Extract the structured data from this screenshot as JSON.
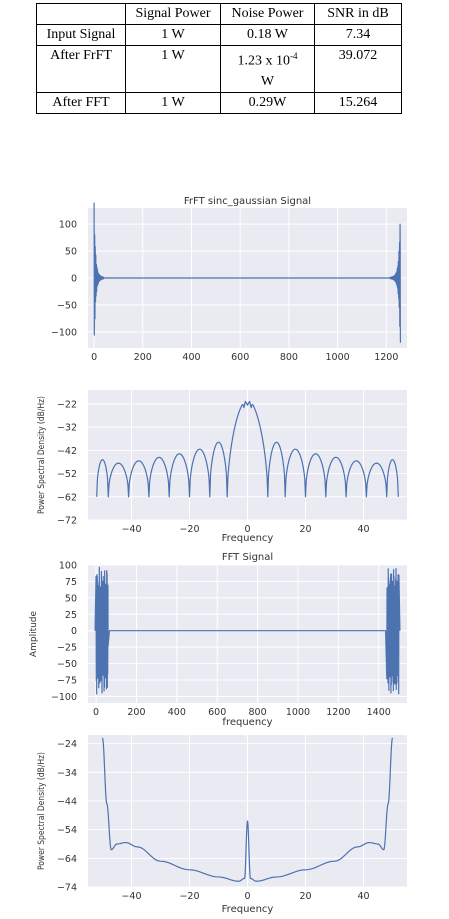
{
  "table": {
    "headers": [
      "",
      "Signal Power",
      "Noise Power",
      "SNR in dB"
    ],
    "rows": [
      {
        "label": "Input Signal",
        "signal_power": "1 W",
        "noise_power": "0.18 W",
        "snr_db": "7.34"
      },
      {
        "label": "After FrFT",
        "signal_power": "1 W",
        "noise_power_base": "1.23 x 10",
        "noise_power_exp": "-4",
        "noise_power_unit": "W",
        "snr_db": "39.072"
      },
      {
        "label": "After FFT",
        "signal_power": "1 W",
        "noise_power": "0.29W",
        "snr_db": "15.264"
      }
    ]
  },
  "colors": {
    "line": "#4c72b0",
    "plot_bg": "#eaeaf2",
    "grid": "#ffffff",
    "text": "#333333"
  },
  "chart_data": [
    {
      "type": "line",
      "title": "FrFT sinc_gaussian Signal",
      "xlabel": "",
      "ylabel": "",
      "xlim": [
        -25,
        1285
      ],
      "ylim": [
        -130,
        130
      ],
      "xticks": [
        0,
        200,
        400,
        600,
        800,
        1000,
        1200
      ],
      "yticks": [
        100,
        50,
        0,
        -50,
        -100
      ],
      "series": [
        {
          "description_points": {
            "burst_left_x": [
              0,
              40
            ],
            "burst_right_x": [
              1215,
              1258
            ],
            "peak_amplitude": 118
          }
        }
      ]
    },
    {
      "type": "line",
      "title": "",
      "xlabel": "Frequency",
      "ylabel": "Power Spectral Density (dB/Hz)",
      "xlim": [
        -55,
        55
      ],
      "ylim": [
        -72,
        -16
      ],
      "xticks": [
        -40,
        -20,
        0,
        20,
        40
      ],
      "yticks": [
        -22,
        -32,
        -42,
        -52,
        -62,
        -72
      ],
      "series": [
        {
          "main_lobe_peak": -20.5,
          "main_lobe_x": 0,
          "side_lobe_peaks": [
            -47.5,
            -46.5,
            -45,
            -43.5,
            -41.5,
            -38.5,
            -38.5,
            -41.5,
            -43.5,
            -45,
            -46.5,
            -47.5
          ],
          "nulls_x": [
            -48,
            -41,
            -34,
            -27,
            -20,
            -13,
            -7,
            7,
            13,
            20,
            27,
            34,
            41,
            48
          ],
          "null_level": -62
        }
      ]
    },
    {
      "type": "line",
      "title": "FFT Signal",
      "xlabel": "frequency",
      "ylabel": "Amplitude",
      "xlim": [
        -40,
        1540
      ],
      "ylim": [
        -110,
        100
      ],
      "xticks": [
        0,
        200,
        400,
        600,
        800,
        1000,
        1200,
        1400
      ],
      "yticks": [
        100,
        75,
        50,
        25,
        0,
        -25,
        -50,
        -75,
        -100
      ],
      "series": [
        {
          "burst_left_x": [
            0,
            60
          ],
          "burst_right_x": [
            1440,
            1500
          ],
          "peak_amplitude": 97
        }
      ]
    },
    {
      "type": "line",
      "title": "",
      "xlabel": "Frequency",
      "ylabel": "Power Spectral Density (dB/Hz)",
      "xlim": [
        -55,
        55
      ],
      "ylim": [
        -74,
        -21
      ],
      "xticks": [
        -40,
        -20,
        0,
        20,
        40
      ],
      "yticks": [
        -24,
        -34,
        -44,
        -54,
        -64,
        -74
      ],
      "series": [
        {
          "x": [
            -50,
            -48.5,
            -47,
            -45,
            -42,
            -38,
            -30,
            -20,
            -10,
            -3,
            -1,
            0,
            1,
            3,
            10,
            20,
            30,
            38,
            42,
            45,
            47,
            48.5,
            50
          ],
          "y": [
            -22,
            -45,
            -61,
            -59,
            -58.5,
            -60,
            -65,
            -68,
            -70.5,
            -72,
            -71,
            -51,
            -71,
            -72,
            -70.5,
            -68,
            -65,
            -60,
            -58.5,
            -59,
            -61,
            -45,
            -22
          ]
        }
      ]
    }
  ]
}
